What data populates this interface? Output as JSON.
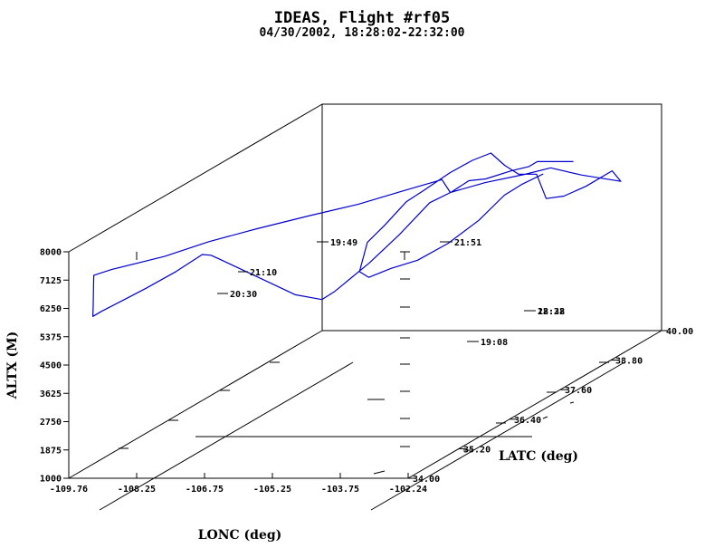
{
  "chart_data": {
    "type": "line3d",
    "title": "IDEAS, Flight #rf05",
    "subtitle": "04/30/2002, 18:28:02-22:32:00",
    "xlabel": "LONC (deg)",
    "ylabel": "LATC (deg)",
    "zlabel": "ALTX (M)",
    "x_ticks": [
      "-109.76",
      "-108.25",
      "-106.75",
      "-105.25",
      "-103.75",
      "-102.24"
    ],
    "y_ticks": [
      "34.00",
      "35.20",
      "36.40",
      "37.60",
      "38.80",
      "40.00"
    ],
    "z_ticks": [
      "8000",
      "7125",
      "6250",
      "5375",
      "4500",
      "3625",
      "2750",
      "1875",
      "1000"
    ],
    "xlim": [
      -109.76,
      -102.24
    ],
    "ylim": [
      34.0,
      40.0
    ],
    "zlim": [
      1000,
      8000
    ],
    "time_labels": [
      "19:49",
      "21:51",
      "21:10",
      "20:30",
      "19:08",
      "18:28",
      "22:32"
    ],
    "series": [
      {
        "color": "#0000cc",
        "points": [
          [
            -104.1,
            39.9,
            6300
          ],
          [
            -104.9,
            39.9,
            6300
          ],
          [
            -104.9,
            39.7,
            6300
          ],
          [
            -105.0,
            39.4,
            6400
          ],
          [
            -105.2,
            39.0,
            6450
          ],
          [
            -105.2,
            38.6,
            6700
          ],
          [
            -105.4,
            38.4,
            6500
          ],
          [
            -105.6,
            38.1,
            6400
          ],
          [
            -105.8,
            37.6,
            5800
          ],
          [
            -106.0,
            37.1,
            5300
          ],
          [
            -106.3,
            36.6,
            4800
          ],
          [
            -106.4,
            36.4,
            4700
          ],
          [
            -106.8,
            36.2,
            5000
          ],
          [
            -107.2,
            36.1,
            5400
          ],
          [
            -107.6,
            36.0,
            5800
          ],
          [
            -108.0,
            35.9,
            6200
          ],
          [
            -108.1,
            35.8,
            6400
          ],
          [
            -108.2,
            35.7,
            6600
          ],
          [
            -108.3,
            35.6,
            6700
          ],
          [
            -108.6,
            35.3,
            6400
          ],
          [
            -109.0,
            35.0,
            6100
          ],
          [
            -109.3,
            34.8,
            5900
          ],
          [
            -109.6,
            34.6,
            5700
          ],
          [
            -109.6,
            34.4,
            5700
          ],
          [
            -109.5,
            34.3,
            6100
          ],
          [
            -109.4,
            34.2,
            6700
          ],
          [
            -109.3,
            34.1,
            7200
          ],
          [
            -109.0,
            34.2,
            7300
          ],
          [
            -108.2,
            34.6,
            7400
          ],
          [
            -107.6,
            35.0,
            7550
          ],
          [
            -106.9,
            35.4,
            7650
          ],
          [
            -106.1,
            35.8,
            7750
          ],
          [
            -105.4,
            36.2,
            7800
          ],
          [
            -104.8,
            36.6,
            7900
          ],
          [
            -104.3,
            37.0,
            7950
          ],
          [
            -104.3,
            37.2,
            7400
          ],
          [
            -103.9,
            37.6,
            7400
          ],
          [
            -103.4,
            38.0,
            7350
          ],
          [
            -103.2,
            38.4,
            7250
          ],
          [
            -102.8,
            38.7,
            6800
          ],
          [
            -102.3,
            39.1,
            6300
          ],
          [
            -102.4,
            39.0,
            6700
          ],
          [
            -102.7,
            38.7,
            6450
          ],
          [
            -103.0,
            38.5,
            6300
          ],
          [
            -103.3,
            38.4,
            6300
          ],
          [
            -103.7,
            38.6,
            6900
          ],
          [
            -104.1,
            38.6,
            6900
          ],
          [
            -104.5,
            38.7,
            7100
          ],
          [
            -104.9,
            38.8,
            7400
          ],
          [
            -105.4,
            38.9,
            7100
          ],
          [
            -105.8,
            38.8,
            6800
          ],
          [
            -106.2,
            38.6,
            6400
          ],
          [
            -106.4,
            38.4,
            6200
          ],
          [
            -106.6,
            38.1,
            5700
          ],
          [
            -106.7,
            37.8,
            5400
          ],
          [
            -106.5,
            37.4,
            4800
          ],
          [
            -106.2,
            37.3,
            4700
          ],
          [
            -105.8,
            37.4,
            4900
          ],
          [
            -105.4,
            37.6,
            5000
          ],
          [
            -105.0,
            37.9,
            5300
          ],
          [
            -104.7,
            38.3,
            5700
          ],
          [
            -104.6,
            38.8,
            6100
          ],
          [
            -104.5,
            39.1,
            6200
          ],
          [
            -104.3,
            39.4,
            6300
          ]
        ]
      }
    ]
  }
}
